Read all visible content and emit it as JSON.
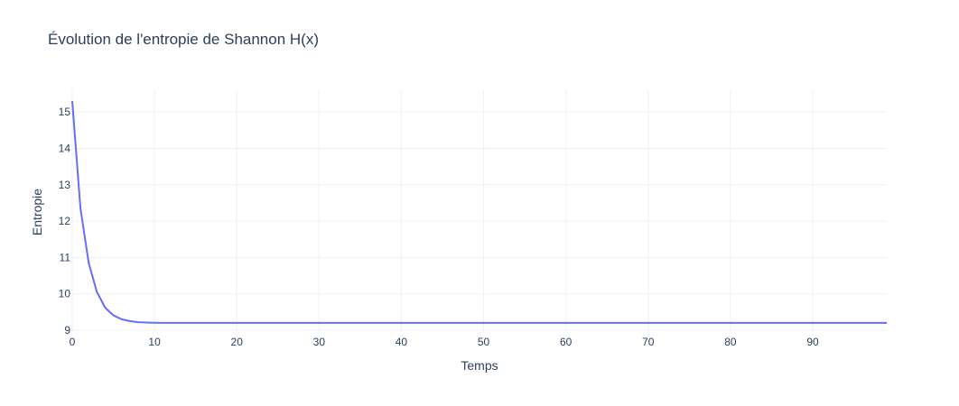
{
  "chart_data": {
    "type": "line",
    "title": "Évolution de l'entropie de Shannon H(x)",
    "xlabel": "Temps",
    "ylabel": "Entropie",
    "xlim": [
      0,
      99
    ],
    "ylim": [
      8.95,
      15.6
    ],
    "xticks": [
      0,
      10,
      20,
      30,
      40,
      50,
      60,
      70,
      80,
      90
    ],
    "yticks": [
      9,
      10,
      11,
      12,
      13,
      14,
      15
    ],
    "grid": true,
    "legend": "none",
    "series": [
      {
        "color": "#636efa",
        "x": [
          0,
          1,
          2,
          3,
          4,
          5,
          6,
          7,
          8,
          9,
          10,
          11,
          12,
          13,
          14,
          15,
          16,
          17,
          18,
          19,
          20,
          21,
          22,
          23,
          24,
          25,
          26,
          27,
          28,
          29,
          30,
          31,
          32,
          33,
          34,
          35,
          36,
          37,
          38,
          39,
          40,
          41,
          42,
          43,
          44,
          45,
          46,
          47,
          48,
          49,
          50,
          51,
          52,
          53,
          54,
          55,
          56,
          57,
          58,
          59,
          60,
          61,
          62,
          63,
          64,
          65,
          66,
          67,
          68,
          69,
          70,
          71,
          72,
          73,
          74,
          75,
          76,
          77,
          78,
          79,
          80,
          81,
          82,
          83,
          84,
          85,
          86,
          87,
          88,
          89,
          90,
          91,
          92,
          93,
          94,
          95,
          96,
          97,
          98,
          99
        ],
        "y": [
          15.3,
          12.35,
          10.85,
          10.05,
          9.62,
          9.41,
          9.3,
          9.25,
          9.22,
          9.21,
          9.205,
          9.2,
          9.2,
          9.2,
          9.2,
          9.2,
          9.2,
          9.2,
          9.2,
          9.2,
          9.2,
          9.2,
          9.2,
          9.2,
          9.2,
          9.2,
          9.2,
          9.2,
          9.2,
          9.2,
          9.2,
          9.2,
          9.2,
          9.2,
          9.2,
          9.2,
          9.2,
          9.2,
          9.2,
          9.2,
          9.2,
          9.2,
          9.2,
          9.2,
          9.2,
          9.2,
          9.2,
          9.2,
          9.2,
          9.2,
          9.2,
          9.2,
          9.2,
          9.2,
          9.2,
          9.2,
          9.2,
          9.2,
          9.2,
          9.2,
          9.2,
          9.2,
          9.2,
          9.2,
          9.2,
          9.2,
          9.2,
          9.2,
          9.2,
          9.2,
          9.2,
          9.2,
          9.2,
          9.2,
          9.2,
          9.2,
          9.2,
          9.2,
          9.2,
          9.2,
          9.2,
          9.2,
          9.2,
          9.2,
          9.2,
          9.2,
          9.2,
          9.2,
          9.2,
          9.2,
          9.2,
          9.2,
          9.2,
          9.2,
          9.2,
          9.2,
          9.2,
          9.2,
          9.2,
          9.2
        ]
      }
    ]
  }
}
